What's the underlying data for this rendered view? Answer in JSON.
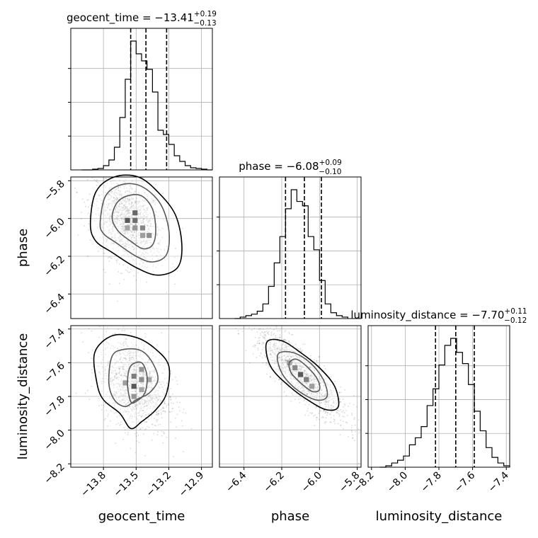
{
  "chart_data": {
    "type": "corner",
    "grid": true,
    "parameters": [
      {
        "name": "geocent_time",
        "median": "−13.41",
        "upper": "+0.19",
        "lower": "−0.13",
        "title_prefix": "geocent_time = ",
        "quantiles": [
          -13.55,
          -13.41,
          -13.22
        ],
        "range": [
          -14.1,
          -12.8
        ],
        "ticks": [
          -13.8,
          -13.5,
          -13.2,
          -12.9
        ],
        "tick_labels": [
          "−13.8",
          "−13.5",
          "−13.2",
          "−12.9"
        ],
        "hist": {
          "edges": [
            -14.0,
            -13.95,
            -13.9,
            -13.85,
            -13.8,
            -13.75,
            -13.7,
            -13.65,
            -13.6,
            -13.55,
            -13.5,
            -13.45,
            -13.4,
            -13.35,
            -13.3,
            -13.25,
            -13.2,
            -13.15,
            -13.1,
            -13.05,
            -13.0,
            -12.95,
            -12.9,
            -12.85,
            -12.8
          ],
          "counts": [
            0,
            0,
            0.5,
            1,
            3,
            7,
            16,
            37,
            64,
            91,
            82,
            77,
            71,
            55,
            28,
            25,
            18,
            10,
            6,
            3,
            1.5,
            1,
            0.5,
            0
          ]
        }
      },
      {
        "name": "phase",
        "median": "−6.08",
        "upper": "+0.09",
        "lower": "−0.10",
        "title_prefix": "phase = ",
        "quantiles": [
          -6.18,
          -6.08,
          -5.99
        ],
        "range": [
          -6.53,
          -5.78
        ],
        "ticks": [
          -6.4,
          -6.2,
          -6.0,
          -5.8
        ],
        "tick_labels": [
          "−6.4",
          "−6.2",
          "−6.0",
          "−5.8"
        ],
        "hist": {
          "edges": [
            -6.45,
            -6.42,
            -6.39,
            -6.36,
            -6.33,
            -6.3,
            -6.27,
            -6.24,
            -6.21,
            -6.18,
            -6.15,
            -6.12,
            -6.09,
            -6.06,
            -6.03,
            -6.0,
            -5.97,
            -5.94,
            -5.91,
            -5.88,
            -5.85
          ],
          "counts": [
            0,
            1,
            2,
            3,
            5,
            10,
            22,
            38,
            56,
            75,
            88,
            80,
            77,
            56,
            47,
            26,
            10,
            4,
            2,
            1
          ]
        }
      },
      {
        "name": "luminosity_distance",
        "median": "−7.70",
        "upper": "+0.11",
        "lower": "−0.12",
        "title_prefix": "luminosity_distance = ",
        "quantiles": [
          -7.82,
          -7.7,
          -7.59
        ],
        "range": [
          -8.22,
          -7.38
        ],
        "ticks": [
          -8.2,
          -8.0,
          -7.8,
          -7.6,
          -7.4
        ],
        "tick_labels": [
          "−8.2",
          "−8.0",
          "−7.8",
          "−7.6",
          "−7.4"
        ],
        "hist": {
          "edges": [
            -8.15,
            -8.115,
            -8.08,
            -8.045,
            -8.01,
            -7.975,
            -7.94,
            -7.905,
            -7.87,
            -7.835,
            -7.8,
            -7.765,
            -7.73,
            -7.695,
            -7.66,
            -7.625,
            -7.59,
            -7.555,
            -7.52,
            -7.485,
            -7.45,
            -7.415,
            -7.38
          ],
          "counts": [
            0,
            1,
            3,
            5,
            8,
            16,
            21,
            29,
            44,
            56,
            73,
            87,
            92,
            82,
            74,
            59,
            40,
            26,
            14,
            7,
            3,
            1
          ]
        }
      }
    ],
    "pairs": [
      {
        "x": "geocent_time",
        "y": "phase",
        "yticks": [
          -6.4,
          -6.2,
          -6.0,
          -5.8
        ],
        "ytick_labels": [
          "−6.4",
          "−6.2",
          "−6.0",
          "−5.8"
        ],
        "mode": [
          -13.58,
          -6.01
        ],
        "contours": [
          [
            [
              -13.72,
              -6.0
            ],
            [
              -13.68,
              -5.92
            ],
            [
              -13.58,
              -5.88
            ],
            [
              -13.45,
              -5.88
            ],
            [
              -13.35,
              -5.95
            ],
            [
              -13.32,
              -6.06
            ],
            [
              -13.35,
              -6.14
            ],
            [
              -13.44,
              -6.16
            ],
            [
              -13.55,
              -6.12
            ],
            [
              -13.66,
              -6.07
            ]
          ],
          [
            [
              -13.83,
              -6.02
            ],
            [
              -13.78,
              -5.88
            ],
            [
              -13.63,
              -5.82
            ],
            [
              -13.45,
              -5.83
            ],
            [
              -13.28,
              -5.92
            ],
            [
              -13.2,
              -6.06
            ],
            [
              -13.22,
              -6.19
            ],
            [
              -13.35,
              -6.23
            ],
            [
              -13.5,
              -6.2
            ],
            [
              -13.68,
              -6.13
            ],
            [
              -13.8,
              -6.08
            ]
          ],
          [
            [
              -13.92,
              -6.03
            ],
            [
              -13.87,
              -5.86
            ],
            [
              -13.7,
              -5.78
            ],
            [
              -13.48,
              -5.78
            ],
            [
              -13.3,
              -5.86
            ],
            [
              -13.14,
              -5.98
            ],
            [
              -13.08,
              -6.14
            ],
            [
              -13.12,
              -6.26
            ],
            [
              -13.3,
              -6.3
            ],
            [
              -13.5,
              -6.26
            ],
            [
              -13.72,
              -6.18
            ],
            [
              -13.87,
              -6.12
            ]
          ]
        ],
        "density": [
          {
            "x": -13.58,
            "y": -6.01,
            "v": 1.0
          },
          {
            "x": -13.51,
            "y": -6.01,
            "v": 0.85
          },
          {
            "x": -13.51,
            "y": -5.97,
            "v": 0.9
          },
          {
            "x": -13.44,
            "y": -6.05,
            "v": 0.7
          },
          {
            "x": -13.38,
            "y": -6.09,
            "v": 0.65
          },
          {
            "x": -13.51,
            "y": -6.05,
            "v": 0.6
          },
          {
            "x": -13.44,
            "y": -6.09,
            "v": 0.55
          },
          {
            "x": -13.58,
            "y": -6.05,
            "v": 0.5
          }
        ]
      },
      {
        "x": "geocent_time",
        "y": "luminosity_distance",
        "yticks": [
          -8.2,
          -8.0,
          -7.8,
          -7.6,
          -7.4
        ],
        "ytick_labels": [
          "−8.2",
          "−8.0",
          "−7.8",
          "−7.6",
          "−7.4"
        ],
        "mode": [
          -13.52,
          -7.72
        ],
        "contours": [
          [
            [
              -13.55,
              -7.83
            ],
            [
              -13.58,
              -7.72
            ],
            [
              -13.55,
              -7.62
            ],
            [
              -13.45,
              -7.6
            ],
            [
              -13.4,
              -7.68
            ],
            [
              -13.42,
              -7.78
            ],
            [
              -13.5,
              -7.83
            ]
          ],
          [
            [
              -13.75,
              -7.72
            ],
            [
              -13.72,
              -7.56
            ],
            [
              -13.6,
              -7.52
            ],
            [
              -13.45,
              -7.53
            ],
            [
              -13.35,
              -7.6
            ],
            [
              -13.3,
              -7.7
            ],
            [
              -13.38,
              -7.78
            ],
            [
              -13.5,
              -7.82
            ],
            [
              -13.6,
              -7.86
            ],
            [
              -13.7,
              -7.82
            ]
          ],
          [
            [
              -13.86,
              -7.72
            ],
            [
              -13.88,
              -7.54
            ],
            [
              -13.72,
              -7.44
            ],
            [
              -13.5,
              -7.45
            ],
            [
              -13.32,
              -7.52
            ],
            [
              -13.2,
              -7.62
            ],
            [
              -13.22,
              -7.78
            ],
            [
              -13.32,
              -7.88
            ],
            [
              -13.45,
              -7.95
            ],
            [
              -13.55,
              -7.99
            ],
            [
              -13.65,
              -7.9
            ],
            [
              -13.8,
              -7.82
            ]
          ]
        ],
        "density": [
          {
            "x": -13.52,
            "y": -7.74,
            "v": 1.0
          },
          {
            "x": -13.52,
            "y": -7.68,
            "v": 0.75
          },
          {
            "x": -13.45,
            "y": -7.7,
            "v": 0.65
          },
          {
            "x": -13.45,
            "y": -7.64,
            "v": 0.6
          },
          {
            "x": -13.38,
            "y": -7.7,
            "v": 0.5
          },
          {
            "x": -13.6,
            "y": -7.72,
            "v": 0.55
          },
          {
            "x": -13.52,
            "y": -7.8,
            "v": 0.6
          },
          {
            "x": -13.45,
            "y": -7.76,
            "v": 0.5
          }
        ]
      },
      {
        "x": "phase",
        "y": "luminosity_distance",
        "yticks": [
          -8.2,
          -8.0,
          -7.8,
          -7.6,
          -7.4
        ],
        "ytick_labels": [
          "−8.2",
          "−8.0",
          "−7.8",
          "−7.6",
          "−7.4"
        ],
        "mode": [
          -6.1,
          -7.67
        ],
        "contours": [
          [
            [
              -6.16,
              -7.6
            ],
            [
              -6.12,
              -7.58
            ],
            [
              -6.06,
              -7.63
            ],
            [
              -6.01,
              -7.7
            ],
            [
              -6.0,
              -7.76
            ],
            [
              -6.04,
              -7.77
            ],
            [
              -6.1,
              -7.72
            ],
            [
              -6.15,
              -7.66
            ]
          ],
          [
            [
              -6.22,
              -7.55
            ],
            [
              -6.14,
              -7.54
            ],
            [
              -6.05,
              -7.6
            ],
            [
              -5.98,
              -7.7
            ],
            [
              -5.96,
              -7.8
            ],
            [
              -6.02,
              -7.82
            ],
            [
              -6.12,
              -7.76
            ],
            [
              -6.2,
              -7.66
            ]
          ],
          [
            [
              -6.28,
              -7.48
            ],
            [
              -6.2,
              -7.47
            ],
            [
              -6.1,
              -7.54
            ],
            [
              -6.0,
              -7.63
            ],
            [
              -5.92,
              -7.74
            ],
            [
              -5.9,
              -7.86
            ],
            [
              -5.96,
              -7.88
            ],
            [
              -6.05,
              -7.83
            ],
            [
              -6.16,
              -7.74
            ],
            [
              -6.26,
              -7.62
            ]
          ]
        ],
        "density": [
          {
            "x": -6.1,
            "y": -7.67,
            "v": 1.0
          },
          {
            "x": -6.13,
            "y": -7.63,
            "v": 0.7
          },
          {
            "x": -6.07,
            "y": -7.7,
            "v": 0.75
          },
          {
            "x": -6.04,
            "y": -7.74,
            "v": 0.55
          },
          {
            "x": -6.16,
            "y": -7.6,
            "v": 0.5
          }
        ]
      }
    ]
  }
}
